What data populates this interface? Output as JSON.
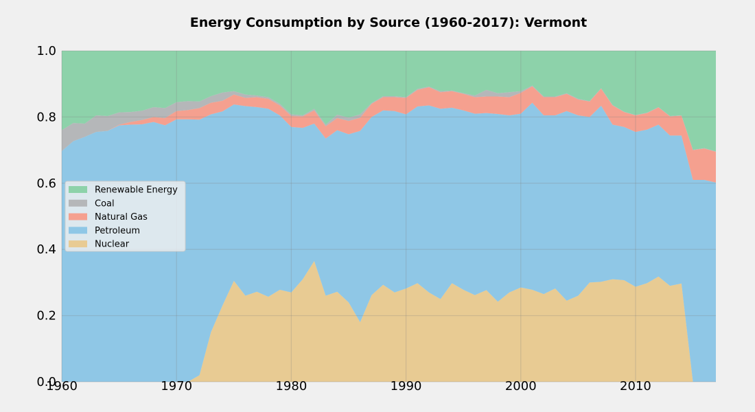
{
  "chart_data": {
    "type": "area",
    "stacked": true,
    "normalized": true,
    "title": "Energy Consumption by Source (1960-2017): Vermont",
    "xlabel": "",
    "ylabel": "",
    "xlim": [
      1960,
      2017
    ],
    "ylim": [
      0,
      1
    ],
    "x_ticks": [
      1960,
      1970,
      1980,
      1990,
      2000,
      2010
    ],
    "y_ticks": [
      0.0,
      0.2,
      0.4,
      0.6,
      0.8,
      1.0
    ],
    "x_tick_labels": [
      "1960",
      "1970",
      "1980",
      "1990",
      "2000",
      "2010"
    ],
    "y_tick_labels": [
      "0.0",
      "0.2",
      "0.4",
      "0.6",
      "0.8",
      "1.0"
    ],
    "grid": true,
    "legend_position": "center-left",
    "x": [
      1960,
      1961,
      1962,
      1963,
      1964,
      1965,
      1966,
      1967,
      1968,
      1969,
      1970,
      1971,
      1972,
      1973,
      1974,
      1975,
      1976,
      1977,
      1978,
      1979,
      1980,
      1981,
      1982,
      1983,
      1984,
      1985,
      1986,
      1987,
      1988,
      1989,
      1990,
      1991,
      1992,
      1993,
      1994,
      1995,
      1996,
      1997,
      1998,
      1999,
      2000,
      2001,
      2002,
      2003,
      2004,
      2005,
      2006,
      2007,
      2008,
      2009,
      2010,
      2011,
      2012,
      2013,
      2014,
      2015,
      2016,
      2017
    ],
    "series": [
      {
        "name": "Nuclear",
        "color": "#e8cb93",
        "values": [
          0,
          0,
          0,
          0,
          0,
          0,
          0,
          0,
          0,
          0,
          0,
          0,
          0.02,
          0.15,
          0.23,
          0.305,
          0.26,
          0.272,
          0.257,
          0.278,
          0.27,
          0.31,
          0.365,
          0.26,
          0.272,
          0.24,
          0.18,
          0.262,
          0.293,
          0.27,
          0.282,
          0.298,
          0.27,
          0.25,
          0.298,
          0.278,
          0.262,
          0.277,
          0.242,
          0.27,
          0.285,
          0.278,
          0.265,
          0.282,
          0.245,
          0.26,
          0.3,
          0.302,
          0.31,
          0.307,
          0.287,
          0.298,
          0.318,
          0.29,
          0.297,
          0,
          0,
          0
        ]
      },
      {
        "name": "Petroleum",
        "color": "#8fc7e6",
        "values": [
          0.697,
          0.727,
          0.74,
          0.755,
          0.758,
          0.775,
          0.777,
          0.778,
          0.785,
          0.775,
          0.793,
          0.793,
          0.772,
          0.658,
          0.587,
          0.533,
          0.573,
          0.558,
          0.568,
          0.527,
          0.5,
          0.457,
          0.415,
          0.475,
          0.488,
          0.508,
          0.578,
          0.538,
          0.527,
          0.548,
          0.526,
          0.534,
          0.565,
          0.575,
          0.53,
          0.542,
          0.548,
          0.535,
          0.567,
          0.535,
          0.525,
          0.565,
          0.54,
          0.523,
          0.573,
          0.545,
          0.5,
          0.532,
          0.467,
          0.463,
          0.468,
          0.464,
          0.459,
          0.454,
          0.447,
          0.61,
          0.61,
          0.602
        ]
      },
      {
        "name": "Natural Gas",
        "color": "#f5a08f",
        "values": [
          0,
          0,
          0,
          0,
          0,
          0.002,
          0.008,
          0.013,
          0.015,
          0.022,
          0.025,
          0.028,
          0.035,
          0.035,
          0.032,
          0.03,
          0.025,
          0.03,
          0.03,
          0.03,
          0.033,
          0.035,
          0.04,
          0.037,
          0.037,
          0.04,
          0.04,
          0.04,
          0.04,
          0.042,
          0.05,
          0.05,
          0.055,
          0.05,
          0.05,
          0.05,
          0.05,
          0.05,
          0.053,
          0.055,
          0.063,
          0.05,
          0.055,
          0.055,
          0.052,
          0.048,
          0.047,
          0.052,
          0.058,
          0.045,
          0.05,
          0.05,
          0.052,
          0.058,
          0.06,
          0.09,
          0.095,
          0.093
        ]
      },
      {
        "name": "Coal",
        "color": "#b5b7b9",
        "values": [
          0.063,
          0.055,
          0.04,
          0.05,
          0.045,
          0.037,
          0.03,
          0.028,
          0.03,
          0.03,
          0.027,
          0.027,
          0.02,
          0.02,
          0.025,
          0.01,
          0.01,
          0.005,
          0.005,
          0.005,
          0.005,
          0.003,
          0.005,
          0.005,
          0.01,
          0.01,
          0.01,
          0.002,
          0.003,
          0.003,
          0.002,
          0.003,
          0.002,
          0.003,
          0.002,
          0.002,
          0.005,
          0.02,
          0.01,
          0.015,
          0.005,
          0.002,
          0.002,
          0.002,
          0.002,
          0.002,
          0.001,
          0.001,
          0.001,
          0.001,
          0.001,
          0.001,
          0.001,
          0.001,
          0.001,
          0.001,
          0.001,
          0.001
        ]
      },
      {
        "name": "Renewable Energy",
        "color": "#8dd2aa",
        "values": [
          0.24,
          0.218,
          0.22,
          0.195,
          0.197,
          0.186,
          0.185,
          0.181,
          0.17,
          0.173,
          0.155,
          0.152,
          0.153,
          0.137,
          0.126,
          0.122,
          0.132,
          0.135,
          0.14,
          0.16,
          0.192,
          0.195,
          0.175,
          0.223,
          0.193,
          0.202,
          0.192,
          0.158,
          0.137,
          0.137,
          0.14,
          0.115,
          0.108,
          0.122,
          0.12,
          0.128,
          0.135,
          0.118,
          0.128,
          0.125,
          0.122,
          0.105,
          0.138,
          0.138,
          0.128,
          0.145,
          0.152,
          0.113,
          0.164,
          0.184,
          0.194,
          0.187,
          0.17,
          0.197,
          0.195,
          0.299,
          0.294,
          0.304
        ]
      }
    ]
  }
}
